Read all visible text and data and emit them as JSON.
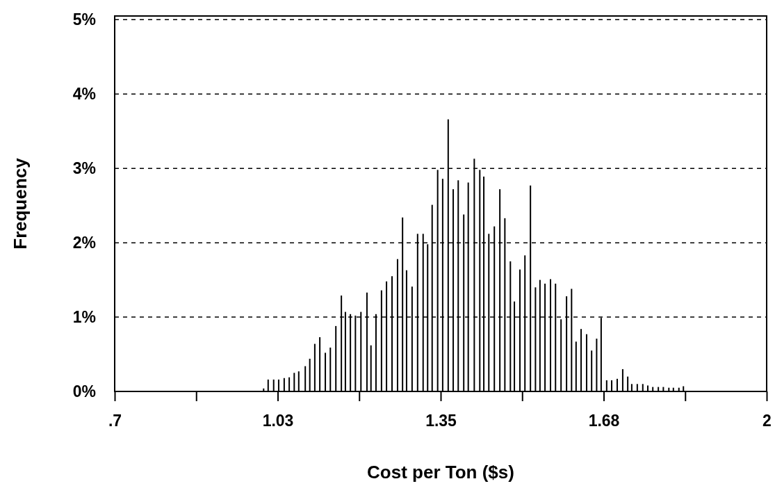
{
  "chart_data": {
    "type": "bar",
    "xlabel": "Cost per Ton ($s)",
    "ylabel": "Frequency",
    "color": "#000000",
    "x": [
      0.997,
      1.006,
      1.017,
      1.027,
      1.038,
      1.048,
      1.058,
      1.067,
      1.08,
      1.089,
      1.099,
      1.109,
      1.12,
      1.13,
      1.141,
      1.152,
      1.16,
      1.17,
      1.18,
      1.191,
      1.203,
      1.211,
      1.221,
      1.232,
      1.242,
      1.253,
      1.264,
      1.274,
      1.282,
      1.293,
      1.304,
      1.315,
      1.324,
      1.333,
      1.344,
      1.354,
      1.365,
      1.375,
      1.385,
      1.396,
      1.405,
      1.417,
      1.428,
      1.436,
      1.446,
      1.457,
      1.468,
      1.478,
      1.489,
      1.497,
      1.508,
      1.518,
      1.529,
      1.539,
      1.548,
      1.558,
      1.569,
      1.579,
      1.59,
      1.601,
      1.611,
      1.62,
      1.63,
      1.641,
      1.651,
      1.661,
      1.67,
      1.681,
      1.691,
      1.702,
      1.713,
      1.723,
      1.731,
      1.742,
      1.753,
      1.763,
      1.773,
      1.784,
      1.794,
      1.805,
      1.814,
      1.825,
      1.834
    ],
    "values": [
      0.04,
      0.16,
      0.16,
      0.16,
      0.18,
      0.19,
      0.25,
      0.27,
      0.34,
      0.44,
      0.64,
      0.73,
      0.52,
      0.59,
      0.88,
      1.29,
      1.07,
      1.04,
      1.02,
      1.07,
      1.33,
      0.62,
      1.04,
      1.36,
      1.48,
      1.55,
      1.78,
      2.34,
      1.63,
      1.41,
      2.12,
      2.12,
      1.98,
      2.51,
      2.98,
      2.86,
      3.66,
      2.72,
      2.84,
      2.38,
      2.81,
      3.13,
      2.98,
      2.89,
      2.12,
      2.22,
      2.72,
      2.33,
      1.75,
      1.21,
      1.64,
      1.83,
      2.77,
      1.4,
      1.5,
      1.45,
      1.51,
      1.45,
      0.97,
      1.28,
      1.38,
      0.67,
      0.84,
      0.77,
      0.55,
      0.71,
      0.99,
      0.15,
      0.15,
      0.17,
      0.3,
      0.2,
      0.1,
      0.1,
      0.1,
      0.08,
      0.06,
      0.06,
      0.06,
      0.05,
      0.05,
      0.05,
      0.07
    ],
    "xlim": [
      0.7,
      2
    ],
    "xticks": [
      {
        "value": 0.7,
        "label": ".7"
      },
      {
        "value": 0.8625,
        "label": null
      },
      {
        "value": 1.025,
        "label": "1.03"
      },
      {
        "value": 1.1875,
        "label": null
      },
      {
        "value": 1.35,
        "label": "1.35"
      },
      {
        "value": 1.5125,
        "label": null
      },
      {
        "value": 1.675,
        "label": "1.68"
      },
      {
        "value": 1.8375,
        "label": null
      },
      2
    ],
    "ylim": [
      0,
      5.05
    ],
    "yticks": [
      {
        "value": 0,
        "label": "0%"
      },
      {
        "value": 1,
        "label": "1%"
      },
      {
        "value": 2,
        "label": "2%"
      },
      {
        "value": 3,
        "label": "3%"
      },
      {
        "value": 4,
        "label": "4%"
      },
      {
        "value": 5,
        "label": "5%"
      }
    ],
    "grid": "y"
  }
}
